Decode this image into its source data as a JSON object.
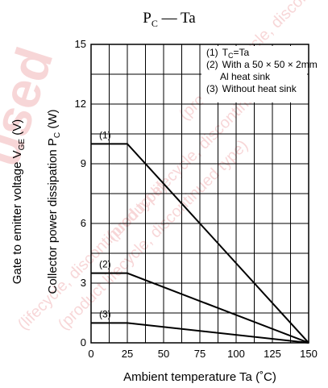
{
  "chart_data": {
    "type": "line",
    "title": "P",
    "title_sub": "C",
    "title_rest": " — Ta",
    "xlabel": "Ambient temperature   Ta   (˚C)",
    "ylabel_outer": "Gate to emitter voltage   V",
    "ylabel_outer_sub": "GE",
    "ylabel_outer_unit": "   (V)",
    "ylabel_inner": "Collector power dissipation   P",
    "ylabel_inner_sub": "C",
    "ylabel_inner_unit": "   (W)",
    "xlim": [
      0,
      150
    ],
    "ylim": [
      0,
      15
    ],
    "x_ticks": [
      "0",
      "25",
      "50",
      "75",
      "100",
      "125",
      "150"
    ],
    "x_tick_values": [
      0,
      25,
      50,
      75,
      100,
      125,
      150
    ],
    "y_ticks": [
      "0",
      "3",
      "6",
      "9",
      "12",
      "15"
    ],
    "y_tick_values": [
      0,
      3,
      6,
      9,
      12,
      15
    ],
    "x_grid_step": 12.5,
    "y_grid_step": 1.5,
    "grid": true,
    "legend_position": "top-right",
    "legend": [
      {
        "num": "(1)",
        "text": "T",
        "sub": "C",
        "rest": "=Ta"
      },
      {
        "num": "(2)",
        "text": "With a 50 × 50 × 2mm",
        "line2": "Al heat sink"
      },
      {
        "num": "(3)",
        "text": "Without heat sink"
      }
    ],
    "series": [
      {
        "name": "(1)",
        "x": [
          0,
          25,
          150
        ],
        "y": [
          10,
          10,
          0
        ]
      },
      {
        "name": "(2)",
        "x": [
          0,
          25,
          150
        ],
        "y": [
          3.5,
          3.5,
          0
        ]
      },
      {
        "name": "(3)",
        "x": [
          0,
          25,
          150
        ],
        "y": [
          1,
          1,
          0
        ]
      }
    ],
    "watermark_text": "used product lifecycle discontinued type"
  }
}
